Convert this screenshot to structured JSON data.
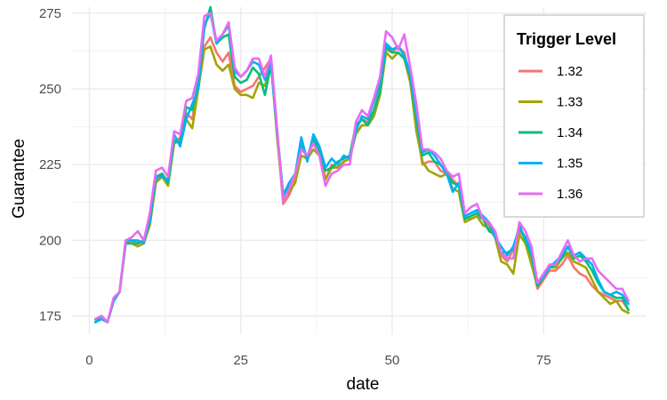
{
  "chart_data": {
    "type": "line",
    "xlabel": "date",
    "ylabel": "Guarantee",
    "xlim": [
      -3,
      92
    ],
    "ylim": [
      169,
      277
    ],
    "x_ticks": [
      0,
      25,
      50,
      75
    ],
    "y_ticks": [
      175,
      200,
      225,
      250,
      275
    ],
    "grid": true,
    "legend": {
      "title": "Trigger Level",
      "position": "top-right"
    },
    "x": [
      1,
      2,
      3,
      4,
      5,
      6,
      7,
      8,
      9,
      10,
      11,
      12,
      13,
      14,
      15,
      16,
      17,
      18,
      19,
      20,
      21,
      22,
      23,
      24,
      25,
      26,
      27,
      28,
      29,
      30,
      31,
      32,
      33,
      34,
      35,
      36,
      37,
      38,
      39,
      40,
      41,
      42,
      43,
      44,
      45,
      46,
      47,
      48,
      49,
      50,
      51,
      52,
      53,
      54,
      55,
      56,
      57,
      58,
      59,
      60,
      61,
      62,
      63,
      64,
      65,
      66,
      67,
      68,
      69,
      70,
      71,
      72,
      73,
      74,
      75,
      76,
      77,
      78,
      79,
      80,
      81,
      82,
      83,
      84,
      85,
      86,
      87,
      88,
      89
    ],
    "series": [
      {
        "name": "1.32",
        "color": "#F8766D",
        "values": [
          174,
          175,
          173,
          180,
          183,
          199,
          200,
          199,
          200,
          205,
          220,
          222,
          219,
          232,
          234,
          242,
          240,
          252,
          264,
          267,
          262,
          259,
          262,
          251,
          249,
          250,
          251,
          254,
          257,
          260,
          235,
          212,
          215,
          220,
          230,
          228,
          233,
          230,
          220,
          225,
          224,
          226,
          227,
          237,
          240,
          239,
          243,
          250,
          263,
          262,
          264,
          262,
          253,
          238,
          225,
          226,
          226,
          223,
          222,
          220,
          218,
          208,
          207,
          208,
          207,
          205,
          203,
          195,
          193,
          197,
          203,
          201,
          193,
          184,
          187,
          190,
          190,
          192,
          195,
          191,
          189,
          188,
          185,
          183,
          182,
          181,
          180,
          180,
          177
        ]
      },
      {
        "name": "1.33",
        "color": "#A3A500",
        "values": [
          174,
          175,
          173,
          180,
          183,
          199,
          199,
          198,
          199,
          205,
          219,
          221,
          218,
          232,
          233,
          240,
          237,
          250,
          263,
          264,
          258,
          256,
          258,
          250,
          248,
          248,
          247,
          252,
          251,
          259,
          234,
          214,
          216,
          219,
          228,
          227,
          230,
          228,
          220,
          224,
          224,
          226,
          227,
          235,
          238,
          238,
          241,
          248,
          262,
          260,
          262,
          260,
          252,
          236,
          226,
          223,
          222,
          221,
          222,
          217,
          216,
          206,
          207,
          208,
          205,
          204,
          201,
          193,
          192,
          189,
          202,
          199,
          192,
          185,
          188,
          191,
          191,
          194,
          196,
          193,
          192,
          191,
          187,
          183,
          181,
          179,
          180,
          177,
          176
        ]
      },
      {
        "name": "1.34",
        "color": "#00BF7D",
        "values": [
          173,
          175,
          173,
          180,
          183,
          199,
          199,
          199,
          200,
          206,
          221,
          222,
          219,
          233,
          232,
          244,
          243,
          252,
          270,
          277,
          265,
          267,
          268,
          254,
          252,
          253,
          257,
          255,
          248,
          258,
          236,
          215,
          218,
          222,
          232,
          227,
          234,
          229,
          223,
          224,
          226,
          227,
          228,
          238,
          240,
          238,
          243,
          249,
          264,
          262,
          262,
          260,
          254,
          240,
          228,
          229,
          226,
          225,
          222,
          219,
          218,
          207,
          208,
          209,
          207,
          203,
          202,
          196,
          196,
          197,
          205,
          200,
          195,
          185,
          188,
          191,
          192,
          194,
          198,
          194,
          195,
          193,
          190,
          186,
          183,
          182,
          181,
          181,
          177
        ]
      },
      {
        "name": "1.35",
        "color": "#00B0F6",
        "values": [
          173,
          174,
          173,
          180,
          183,
          200,
          200,
          200,
          199,
          207,
          221,
          221,
          220,
          235,
          231,
          240,
          245,
          250,
          271,
          275,
          265,
          268,
          271,
          256,
          254,
          256,
          259,
          258,
          253,
          259,
          236,
          215,
          219,
          222,
          234,
          226,
          235,
          231,
          224,
          227,
          225,
          228,
          227,
          236,
          241,
          240,
          246,
          252,
          265,
          263,
          264,
          261,
          255,
          242,
          229,
          230,
          228,
          225,
          222,
          216,
          219,
          208,
          209,
          210,
          208,
          206,
          201,
          198,
          195,
          198,
          204,
          201,
          196,
          186,
          188,
          191,
          193,
          195,
          198,
          195,
          196,
          194,
          192,
          187,
          183,
          182,
          183,
          182,
          179
        ]
      },
      {
        "name": "1.36",
        "color": "#E76BF3",
        "values": [
          174,
          175,
          173,
          181,
          183,
          200,
          201,
          203,
          200,
          209,
          223,
          224,
          221,
          236,
          235,
          246,
          247,
          255,
          274,
          275,
          266,
          268,
          272,
          257,
          254,
          256,
          260,
          260,
          254,
          261,
          237,
          213,
          217,
          222,
          230,
          228,
          232,
          228,
          218,
          222,
          223,
          225,
          225,
          239,
          243,
          241,
          247,
          254,
          269,
          267,
          263,
          268,
          257,
          245,
          230,
          230,
          229,
          227,
          223,
          221,
          222,
          209,
          211,
          212,
          207,
          206,
          203,
          196,
          194,
          194,
          206,
          203,
          198,
          186,
          189,
          192,
          192,
          196,
          200,
          195,
          193,
          194,
          194,
          190,
          188,
          186,
          184,
          184,
          180
        ]
      }
    ]
  }
}
